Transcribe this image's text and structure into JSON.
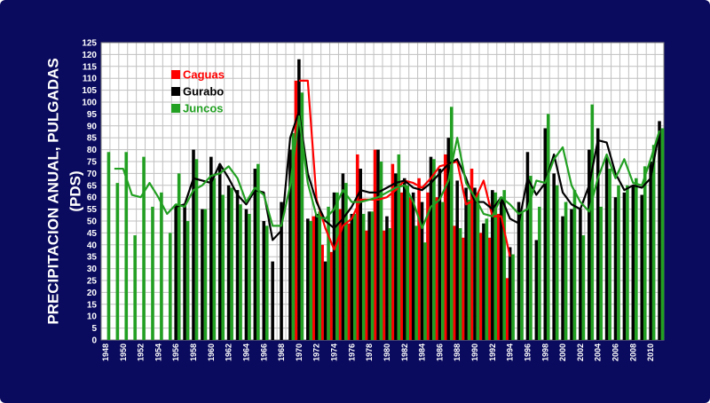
{
  "colors": {
    "background": "#0a0a5e",
    "plot_area": "#ffffff",
    "grid": "#c0c0c0",
    "text": "#ffffff",
    "axis_text": "#000000"
  },
  "chart_data": {
    "type": "bar",
    "title": "",
    "ylabel_line1": "PRECIPITACION ANUAL, PULGADAS",
    "ylabel_line2": "(PDS)",
    "xlabel": "",
    "ylim": [
      0,
      125
    ],
    "yticks": [
      0,
      5,
      10,
      15,
      20,
      25,
      30,
      35,
      40,
      45,
      50,
      55,
      60,
      65,
      70,
      75,
      80,
      85,
      90,
      95,
      100,
      105,
      110,
      115,
      120,
      125
    ],
    "x": [
      1948,
      1949,
      1950,
      1951,
      1952,
      1953,
      1954,
      1955,
      1956,
      1957,
      1958,
      1959,
      1960,
      1961,
      1962,
      1963,
      1964,
      1965,
      1966,
      1967,
      1968,
      1969,
      1970,
      1971,
      1972,
      1973,
      1974,
      1975,
      1976,
      1977,
      1978,
      1979,
      1980,
      1981,
      1982,
      1983,
      1984,
      1985,
      1986,
      1987,
      1988,
      1989,
      1990,
      1991,
      1992,
      1993,
      1994,
      1995,
      1996,
      1997,
      1998,
      1999,
      2000,
      2001,
      2002,
      2003,
      2004,
      2005,
      2006,
      2007,
      2008,
      2009,
      2010,
      2011
    ],
    "xtick_labels": [
      1948,
      1950,
      1952,
      1954,
      1956,
      1958,
      1960,
      1962,
      1964,
      1966,
      1968,
      1970,
      1972,
      1974,
      1976,
      1978,
      1980,
      1982,
      1984,
      1986,
      1988,
      1990,
      1992,
      1994,
      1996,
      1998,
      2000,
      2002,
      2004,
      2006,
      2008,
      2010
    ],
    "grid": true,
    "legend_position": "top-left",
    "series": [
      {
        "name": "Caguas",
        "color": "#ff0000",
        "values": [
          null,
          null,
          null,
          null,
          null,
          null,
          null,
          null,
          null,
          null,
          null,
          null,
          null,
          null,
          null,
          null,
          null,
          null,
          null,
          null,
          null,
          null,
          109,
          null,
          52,
          40,
          37,
          55,
          49,
          78,
          46,
          80,
          46,
          74,
          62,
          60,
          68,
          62,
          60,
          78,
          48,
          43,
          72,
          45,
          43,
          53,
          26,
          null,
          null,
          null,
          null,
          null,
          null,
          null,
          null,
          null,
          null,
          null,
          null,
          null,
          null,
          null,
          null,
          null
        ],
        "trend": [
          null,
          null,
          null,
          null,
          null,
          null,
          null,
          null,
          null,
          null,
          null,
          null,
          null,
          null,
          null,
          null,
          null,
          null,
          null,
          null,
          null,
          null,
          109,
          109,
          59,
          47,
          38,
          48,
          51,
          59,
          59,
          59,
          60,
          63,
          67,
          66,
          64,
          68,
          73,
          74,
          75,
          57,
          59,
          67,
          52,
          52,
          35,
          null,
          null,
          null,
          null,
          null,
          null,
          null,
          null,
          null,
          null,
          null,
          null,
          null,
          null,
          null,
          null,
          null
        ]
      },
      {
        "name": "Gurabo",
        "color": "#000000",
        "values": [
          null,
          null,
          null,
          null,
          null,
          null,
          null,
          null,
          57,
          57,
          80,
          55,
          77,
          74,
          65,
          63,
          55,
          72,
          50,
          33,
          58,
          80,
          118,
          51,
          53,
          33,
          62,
          70,
          53,
          72,
          54,
          80,
          52,
          70,
          68,
          62,
          58,
          77,
          72,
          85,
          67,
          64,
          64,
          49,
          63,
          60,
          39,
          58,
          79,
          42,
          89,
          70,
          52,
          55,
          55,
          80,
          89,
          77,
          60,
          62,
          65,
          61,
          75,
          92
        ],
        "trend": [
          null,
          null,
          null,
          null,
          null,
          null,
          null,
          null,
          56,
          57,
          68,
          67,
          66,
          74,
          68,
          61,
          57,
          63,
          62,
          42,
          46,
          85,
          96,
          70,
          58,
          50,
          47,
          51,
          56,
          63,
          62,
          62,
          64,
          66,
          67,
          64,
          63,
          66,
          70,
          74,
          76,
          68,
          58,
          58,
          55,
          60,
          51,
          49,
          68,
          61,
          66,
          78,
          62,
          57,
          55,
          65,
          84,
          83,
          70,
          63,
          65,
          64,
          68,
          88
        ]
      },
      {
        "name": "Juncos",
        "color": "#22a022",
        "values": [
          79,
          66,
          79,
          44,
          77,
          56,
          62,
          45,
          70,
          50,
          76,
          55,
          68,
          61,
          64,
          57,
          53,
          74,
          48,
          null,
          null,
          87,
          104,
          50,
          54,
          56,
          62,
          66,
          53,
          53,
          54,
          75,
          47,
          78,
          65,
          48,
          41,
          76,
          58,
          98,
          47,
          59,
          62,
          51,
          62,
          63,
          36,
          54,
          69,
          56,
          95,
          65,
          58,
          63,
          44,
          99,
          56,
          72,
          65,
          65,
          68,
          73,
          82,
          89
        ],
        "trend": [
          null,
          72,
          72,
          61,
          60,
          66,
          60,
          53,
          57,
          56,
          63,
          65,
          69,
          70,
          73,
          68,
          58,
          64,
          61,
          48,
          48,
          65,
          94,
          66,
          52,
          51,
          55,
          63,
          58,
          58,
          59,
          60,
          62,
          64,
          65,
          58,
          47,
          56,
          59,
          67,
          85,
          66,
          60,
          53,
          52,
          60,
          57,
          53,
          55,
          67,
          66,
          76,
          81,
          65,
          58,
          54,
          68,
          78,
          68,
          76,
          66,
          65,
          76,
          88
        ]
      }
    ]
  }
}
